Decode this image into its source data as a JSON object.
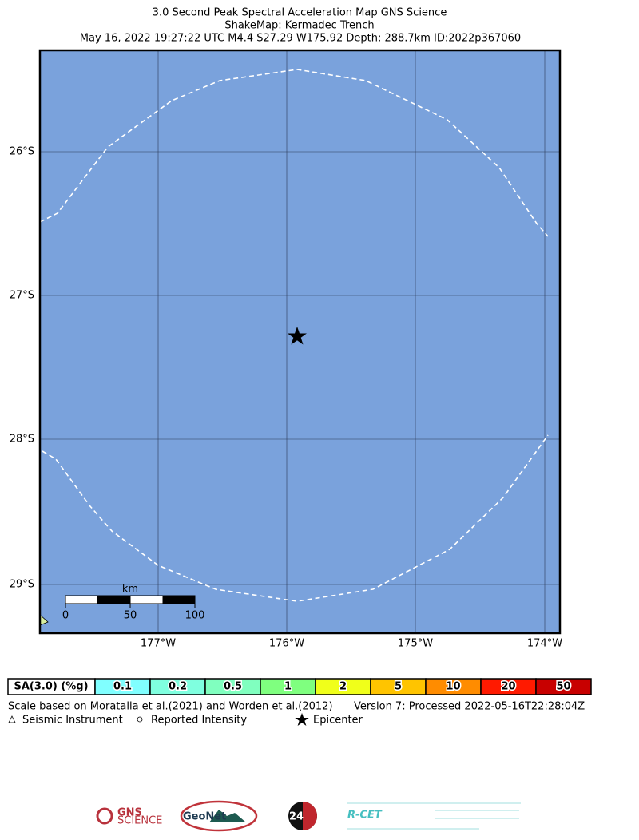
{
  "header": {
    "title": "3.0 Second Peak Spectral Acceleration Map GNS Science",
    "subtitle": "ShakeMap: Kermadec Trench",
    "event": "May 16, 2022 19:27:22 UTC M4.4 S27.29 W175.92 Depth: 288.7km ID:2022p367060"
  },
  "map": {
    "background": "#7aa2dc",
    "lat_labels": [
      "26°S",
      "27°S",
      "28°S",
      "29°S"
    ],
    "lon_labels": [
      "177°W",
      "176°W",
      "175°W",
      "174°W"
    ],
    "scale_bar": {
      "unit": "km",
      "labels": [
        "0",
        "50",
        "100"
      ]
    }
  },
  "legend": {
    "title": "SA(3.0) (%g)",
    "bins": [
      {
        "label": "0.1",
        "color": "#80ffff"
      },
      {
        "label": "0.2",
        "color": "#7fffdf"
      },
      {
        "label": "0.5",
        "color": "#80ffbf"
      },
      {
        "label": "1",
        "color": "#7fff7f"
      },
      {
        "label": "2",
        "color": "#f0ff1a"
      },
      {
        "label": "5",
        "color": "#ffc400"
      },
      {
        "label": "10",
        "color": "#ff8c00"
      },
      {
        "label": "20",
        "color": "#ff1a00"
      },
      {
        "label": "50",
        "color": "#c80000"
      }
    ]
  },
  "notes": {
    "scale": "Scale based on Moratalla et al.(2021) and Worden et al.(2012)",
    "version": "Version 7: Processed 2022-05-16T22:28:04Z",
    "symbols": [
      "Seismic Instrument",
      "Reported Intensity",
      "Epicenter"
    ]
  },
  "logos": [
    "GNS",
    "SCIENCE",
    "GeoNet",
    "24",
    "R-CET"
  ]
}
